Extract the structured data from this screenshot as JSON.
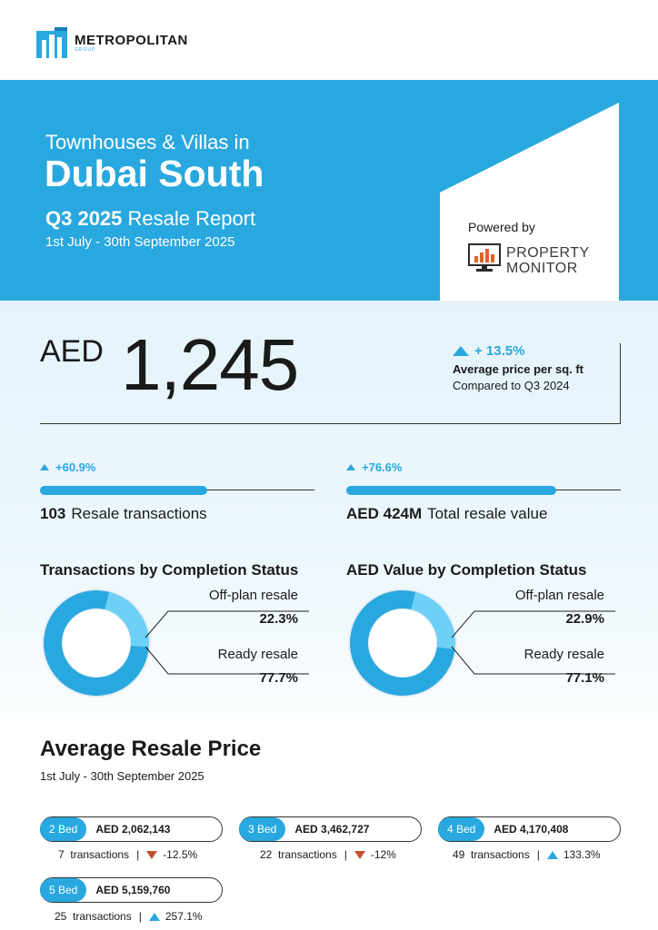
{
  "brand": {
    "name": "METROPOLITAN",
    "sub": "GROUP"
  },
  "hero": {
    "subtitle": "Townhouses & Villas in",
    "title": "Dubai South",
    "report_bold": "Q3 2025",
    "report_rest": " Resale Report",
    "dates": "1st July - 30th September 2025"
  },
  "powered": {
    "label": "Powered by",
    "brand_line1": "PROPERTY",
    "brand_line2": "MONITOR"
  },
  "price_sqft": {
    "currency": "AED",
    "value": "1,245",
    "change": "+ 13.5%",
    "label": "Average price per sq. ft",
    "compare": "Compared to Q3 2024"
  },
  "stats": [
    {
      "change": "+60.9%",
      "value": "103",
      "label": "Resale transactions",
      "bar_fraction": 0.609
    },
    {
      "change": "+76.6%",
      "value": "AED 424M",
      "label": "Total resale value",
      "bar_fraction": 0.766
    }
  ],
  "donuts": [
    {
      "title": "Transactions by Completion Status",
      "offplan_label": "Off-plan resale",
      "offplan_value": "22.3%",
      "offplan_pct": 22.3,
      "ready_label": "Ready resale",
      "ready_value": "77.7%",
      "ready_pct": 77.7
    },
    {
      "title": "AED Value by Completion Status",
      "offplan_label": "Off-plan resale",
      "offplan_value": "22.9%",
      "offplan_pct": 22.9,
      "ready_label": "Ready resale",
      "ready_value": "77.1%",
      "ready_pct": 77.1
    }
  ],
  "avg_price": {
    "title": "Average Resale Price",
    "dates": "1st July - 30th September 2025",
    "items": [
      {
        "bed": "2 Bed",
        "price": "AED 2,062,143",
        "count": "7",
        "tx_label": "transactions",
        "sep": "|",
        "change": "-12.5%",
        "direction": "down"
      },
      {
        "bed": "3 Bed",
        "price": "AED 3,462,727",
        "count": "22",
        "tx_label": "transactions",
        "sep": "|",
        "change": "-12%",
        "direction": "down"
      },
      {
        "bed": "4 Bed",
        "price": "AED 4,170,408",
        "count": "49",
        "tx_label": "transactions",
        "sep": "|",
        "change": "133.3%",
        "direction": "up"
      },
      {
        "bed": "5 Bed",
        "price": "AED 5,159,760",
        "count": "25",
        "tx_label": "transactions",
        "sep": "|",
        "change": "257.1%",
        "direction": "up"
      }
    ]
  },
  "colors": {
    "accent": "#29a8e0",
    "accent_light": "#6fd0f5",
    "down": "#c4502f",
    "text": "#1a1a1a"
  }
}
